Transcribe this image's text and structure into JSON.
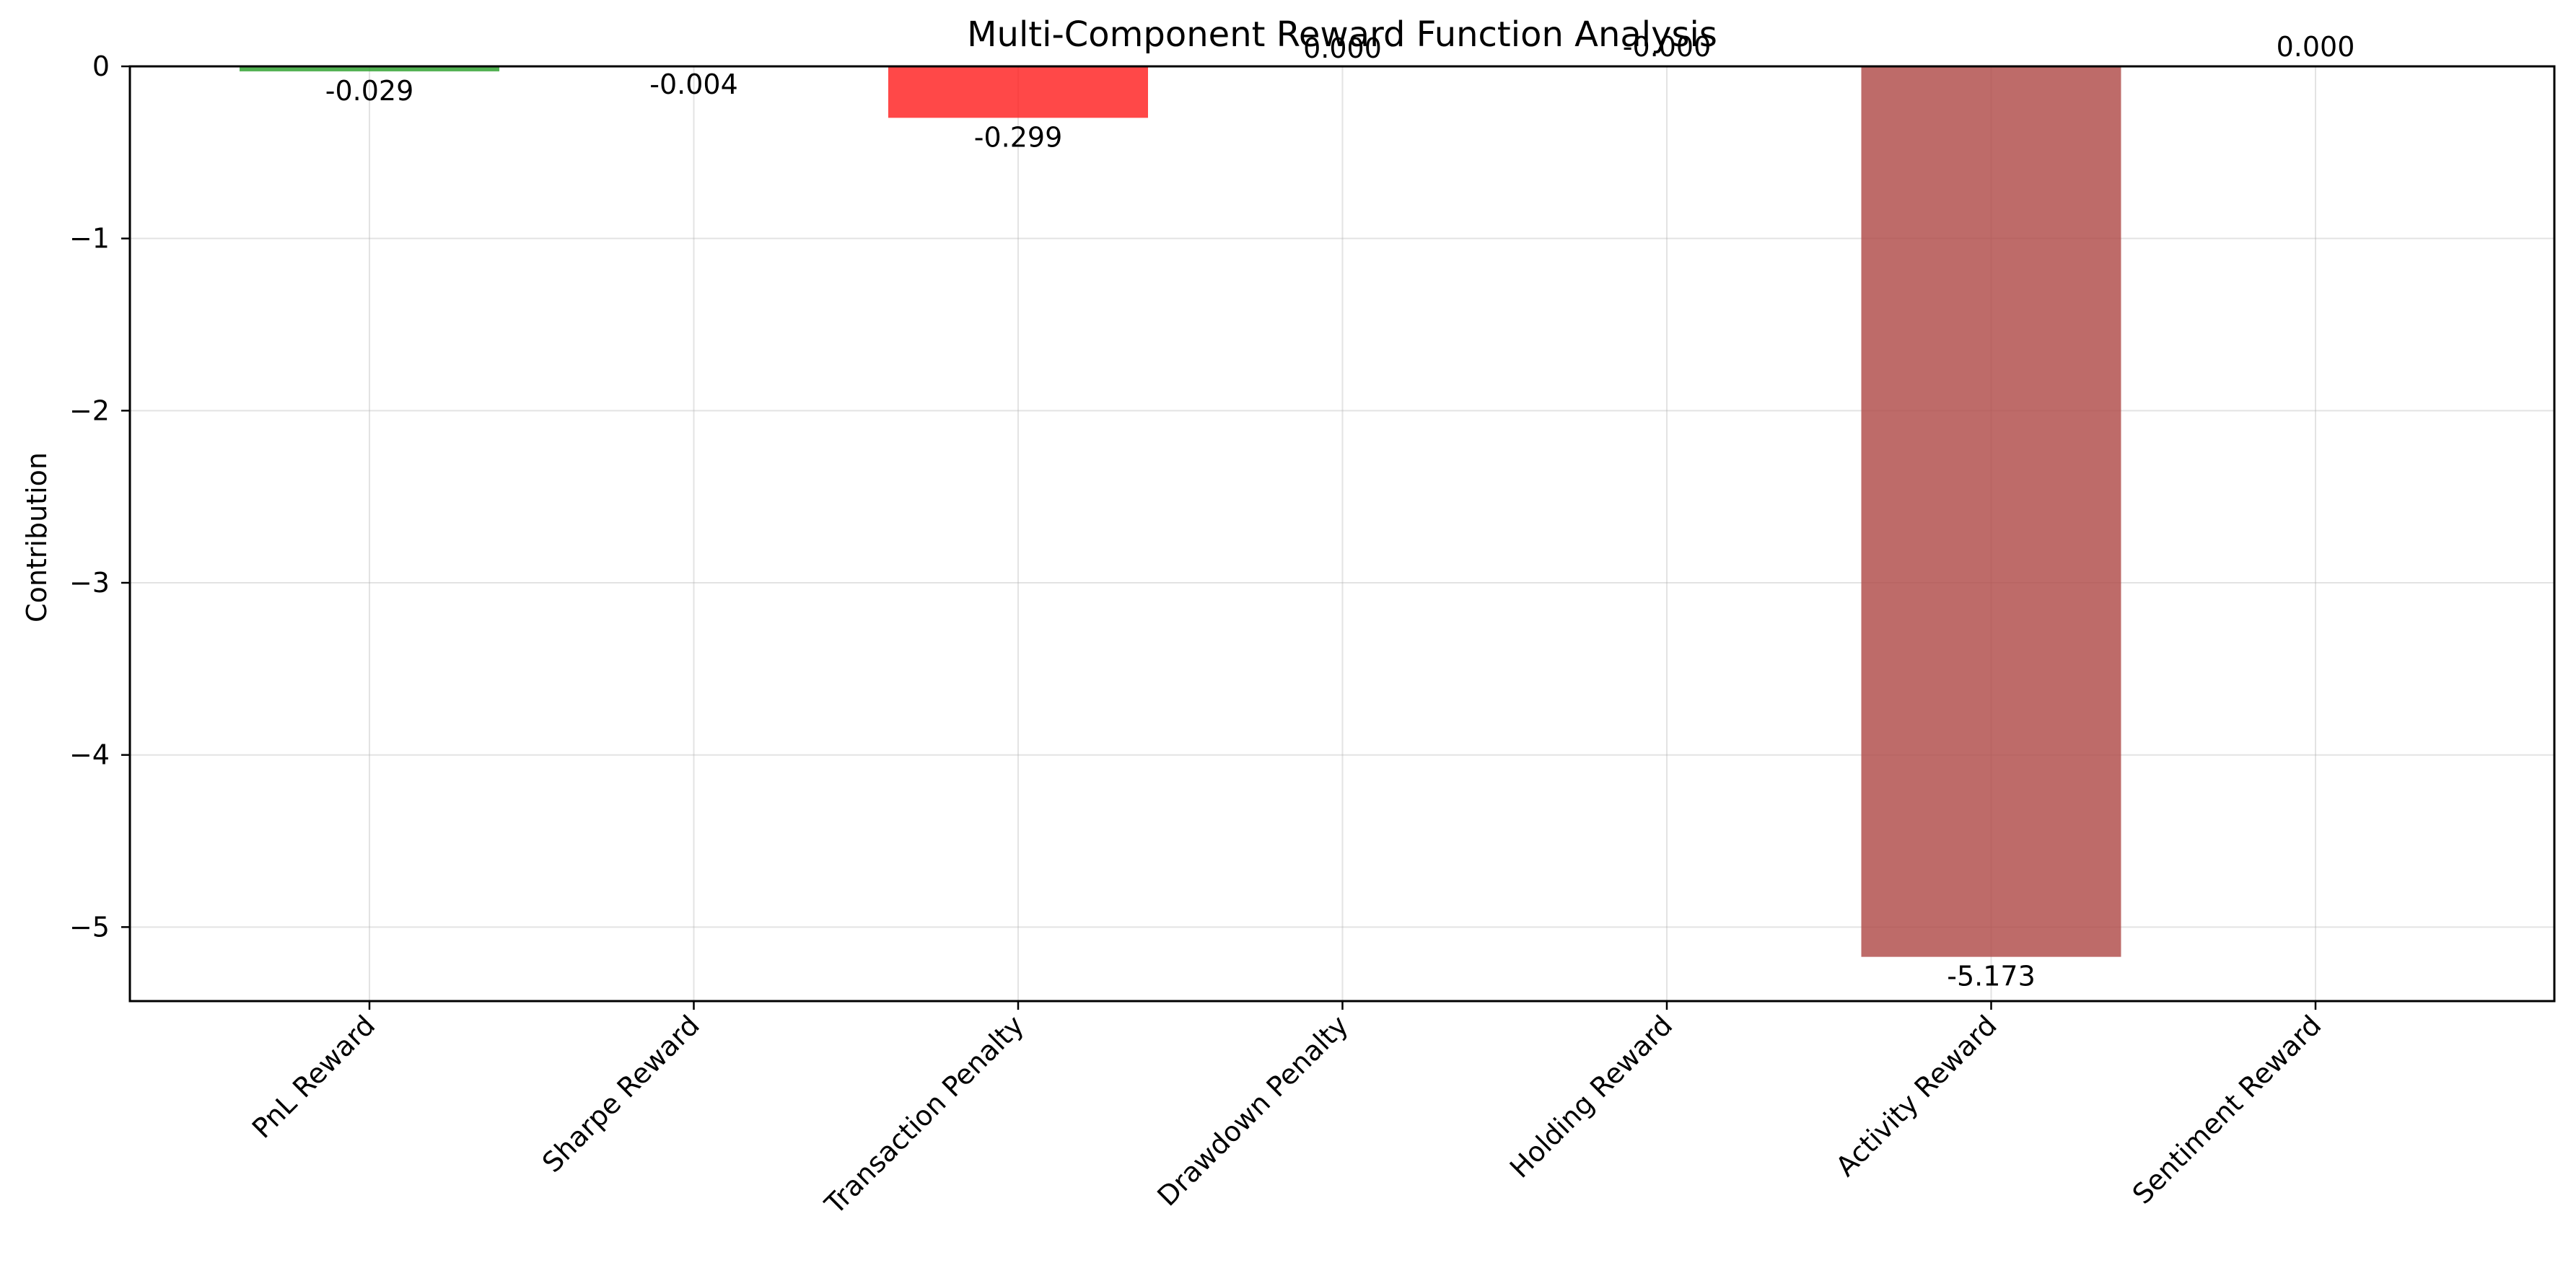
{
  "chart_data": {
    "type": "bar",
    "title": "Multi-Component Reward Function Analysis",
    "xlabel": "",
    "ylabel": "Contribution",
    "categories": [
      "PnL Reward",
      "Sharpe Reward",
      "Transaction Penalty",
      "Drawdown Penalty",
      "Holding Reward",
      "Activity Reward",
      "Sentiment Reward"
    ],
    "values": [
      -0.029,
      -0.004,
      -0.299,
      0.0,
      -0.0,
      -5.173,
      0.0
    ],
    "value_labels": [
      "-0.029",
      "-0.004",
      "-0.299",
      "0.000",
      "-0.000",
      "-5.173",
      "0.000"
    ],
    "bar_colors": [
      "#2ca02c",
      "#1f77b4",
      "#ff2020",
      "#d62728",
      "#9467bd",
      "#b04a48",
      "#17becf"
    ],
    "ylim": [
      -5.43,
      0
    ],
    "yticks": [
      0,
      -1,
      -2,
      -3,
      -4,
      -5
    ],
    "ytick_labels": [
      "0",
      "−1",
      "−2",
      "−3",
      "−4",
      "−5"
    ],
    "grid": true,
    "legend": "none"
  }
}
